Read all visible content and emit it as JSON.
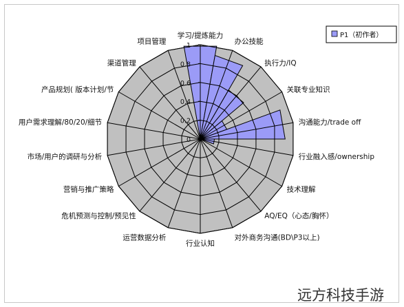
{
  "chart_data": {
    "type": "radar",
    "style": "filled-sectors",
    "categories": [
      "学习/提炼能力",
      "办公技能",
      "执行力/IQ",
      "关联专业知识",
      "沟通能力/trade off",
      "行业融入感/ownership",
      "技术理解",
      "AQ/EQ（心态/胸怀）",
      "对外商务沟通(BD\\P3以上)",
      "行业认知",
      "运营数据分析",
      "危机预测与控制/预见性",
      "营销与推广策略",
      "市场/用户的调研与分析",
      "用户需求理解/80/20/细节",
      "产品规划( 版本计划/节",
      "渠道管理",
      "项目管理"
    ],
    "series": [
      {
        "name": "P1（初作者）",
        "values": [
          1,
          0.9,
          0.6,
          0.3,
          0.9,
          0.15,
          0,
          0,
          0,
          0,
          0,
          0,
          0,
          0,
          0,
          0,
          0,
          0
        ]
      }
    ],
    "ylim": [
      0,
      1
    ],
    "ticks": [
      "0",
      "0.2",
      "0.4",
      "0.6",
      "0.8",
      "1"
    ],
    "legend_position": "top-right",
    "grid": true,
    "colors": {
      "series_fill": "#9b9bf7",
      "series_stroke": "#000000",
      "plot_area": "#c0c0c0"
    }
  },
  "watermark": "远方科技手游"
}
